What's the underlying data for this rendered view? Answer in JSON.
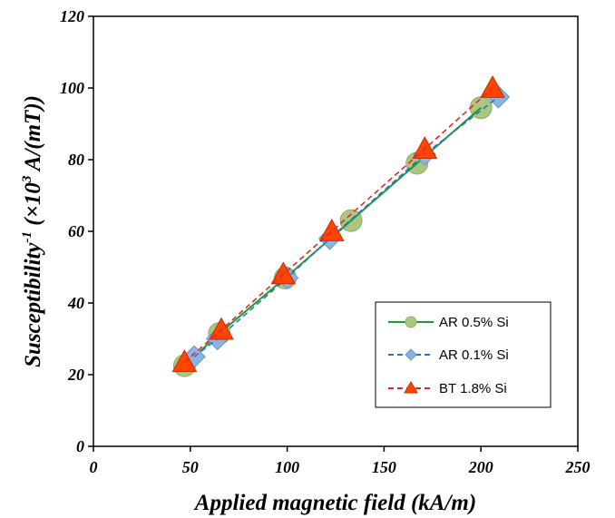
{
  "chart_data": {
    "type": "scatter",
    "xlabel": "Applied magnetic field (kA/m)",
    "ylabel_main": "Susceptibility",
    "ylabel_sup1": "-1",
    "ylabel_mid": " (×10",
    "ylabel_sup2": "3",
    "ylabel_end": " A/(mT))",
    "xlim": [
      0,
      250
    ],
    "ylim": [
      0,
      120
    ],
    "xticks": [
      0,
      50,
      100,
      150,
      200,
      250
    ],
    "yticks": [
      0,
      20,
      40,
      60,
      80,
      100,
      120
    ],
    "grid": false,
    "legend_position": "bottom-right",
    "series": [
      {
        "name": "AR 0.5% Si",
        "color": "#1a9b3c",
        "marker_fill": "#a9c77f",
        "marker": "circle",
        "line": "solid",
        "x": [
          47,
          65,
          99,
          133,
          167,
          200
        ],
        "y": [
          22.5,
          31.5,
          47,
          63,
          79,
          94.5
        ]
      },
      {
        "name": "AR 0.1% Si",
        "color": "#2e6fc7",
        "marker_fill": "#8db3e2",
        "marker": "diamond",
        "line": "dashed",
        "x": [
          52,
          64,
          100,
          122,
          171,
          209
        ],
        "y": [
          25,
          30,
          47,
          58,
          81.5,
          97.5
        ]
      },
      {
        "name": "BT 1.8% Si",
        "color": "#ee2222",
        "marker_fill": "#ff4400",
        "marker": "triangle",
        "line": "dashed",
        "x": [
          47,
          66,
          98,
          123,
          171,
          206
        ],
        "y": [
          23.5,
          32.5,
          48,
          60,
          83,
          100
        ]
      }
    ]
  }
}
